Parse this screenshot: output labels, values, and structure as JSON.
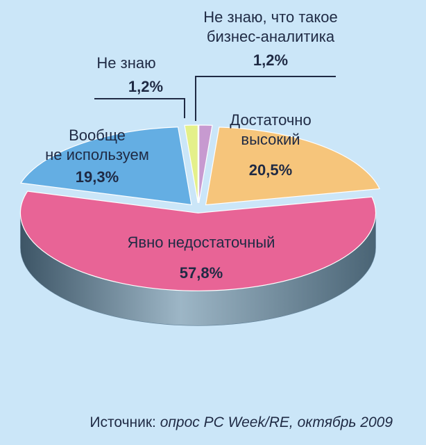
{
  "chart_data": {
    "type": "pie",
    "style": "3d-exploded",
    "slices": [
      {
        "label": "Не знаю, что такое бизнес-аналитика",
        "label_lines": [
          "Не знаю, что такое",
          "бизнес-аналитика"
        ],
        "value": 1.2,
        "value_label": "1,2%",
        "color": "#c79ad0"
      },
      {
        "label": "Достаточно высокий",
        "label_lines": [
          "Достаточно",
          "высокий"
        ],
        "value": 20.5,
        "value_label": "20,5%",
        "color": "#f6c57b"
      },
      {
        "label": "Явно недостаточный",
        "label_lines": [
          "Явно недостаточный"
        ],
        "value": 57.8,
        "value_label": "57,8%",
        "color": "#e86496"
      },
      {
        "label": "Вообще не используем",
        "label_lines": [
          "Вообще",
          "не используем"
        ],
        "value": 19.3,
        "value_label": "19,3%",
        "color": "#64aee3"
      },
      {
        "label": "Не знаю",
        "label_lines": [
          "Не знаю"
        ],
        "value": 1.2,
        "value_label": "1,2%",
        "color": "#e4f08a"
      }
    ]
  },
  "source": {
    "prefix": "Источник:",
    "body": " опрос PC Week/RE, октябрь 2009"
  },
  "colors": {
    "background": "#cbe6f8",
    "pie_side": "#5f7f96",
    "text": "#1f2a44"
  }
}
